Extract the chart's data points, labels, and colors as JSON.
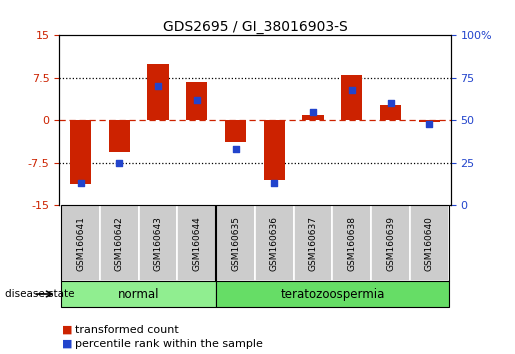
{
  "title": "GDS2695 / GI_38016903-S",
  "samples": [
    "GSM160641",
    "GSM160642",
    "GSM160643",
    "GSM160644",
    "GSM160635",
    "GSM160636",
    "GSM160637",
    "GSM160638",
    "GSM160639",
    "GSM160640"
  ],
  "red_values": [
    -11.2,
    -5.5,
    10.0,
    6.8,
    -3.8,
    -10.5,
    1.0,
    8.0,
    2.8,
    -0.3
  ],
  "blue_values_pct": [
    13,
    25,
    70,
    62,
    33,
    13,
    55,
    68,
    60,
    48
  ],
  "ylim_left": [
    -15,
    15
  ],
  "ylim_right": [
    0,
    100
  ],
  "yticks_left": [
    -15,
    -7.5,
    0,
    7.5,
    15
  ],
  "yticks_right": [
    0,
    25,
    50,
    75,
    100
  ],
  "ytick_labels_left": [
    "-15",
    "-7.5",
    "0",
    "7.5",
    "15"
  ],
  "ytick_labels_right": [
    "0",
    "25",
    "50",
    "75",
    "100%"
  ],
  "groups": [
    {
      "label": "normal",
      "indices": [
        0,
        1,
        2,
        3
      ],
      "color": "#90ee90"
    },
    {
      "label": "teratozoospermia",
      "indices": [
        4,
        5,
        6,
        7,
        8,
        9
      ],
      "color": "#66dd66"
    }
  ],
  "disease_state_label": "disease state",
  "red_color": "#cc2200",
  "blue_color": "#2244cc",
  "bar_width": 0.55,
  "blue_square_size": 25,
  "hline_color": "#cc2200",
  "dotted_color": "#000000",
  "sample_box_color": "#cccccc",
  "legend_red_label": "transformed count",
  "legend_blue_label": "percentile rank within the sample",
  "bg_color": "#ffffff"
}
